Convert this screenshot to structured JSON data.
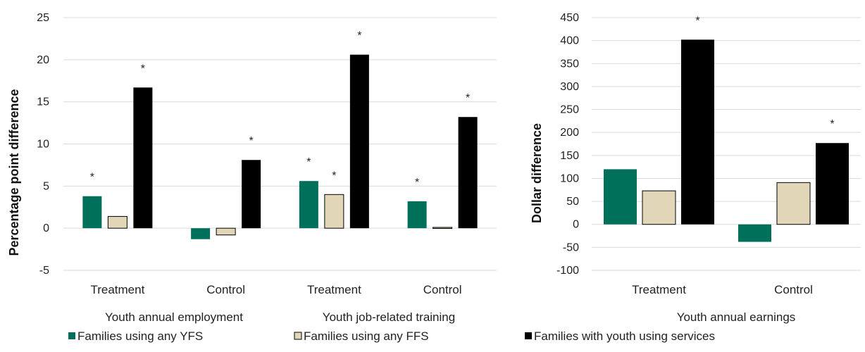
{
  "colors": {
    "yfs": "#00705A",
    "ffs": "#E2D6B8",
    "youth": "#000000",
    "grid": "#D9D9D9",
    "bar_outline": "#000000"
  },
  "legend": [
    {
      "series_index": 0,
      "label": "Families using any YFS"
    },
    {
      "series_index": 1,
      "label": "Families using any FFS"
    },
    {
      "series_index": 2,
      "label": "Families with youth using services"
    }
  ],
  "chart_data": [
    {
      "type": "bar",
      "ylabel": "Percentage point difference",
      "ylim": [
        -5,
        25
      ],
      "yticks": [
        -5,
        0,
        5,
        10,
        15,
        20,
        25
      ],
      "grid": true,
      "categories": [
        "Treatment",
        "Control",
        "Treatment",
        "Control"
      ],
      "groups": [
        "Youth annual employment",
        "Youth job-related training"
      ],
      "series": [
        {
          "values": [
            3.8,
            -1.3,
            5.6,
            3.2
          ],
          "significant": [
            true,
            false,
            true,
            true
          ]
        },
        {
          "values": [
            1.4,
            -0.8,
            4.0,
            0.1
          ],
          "significant": [
            false,
            false,
            true,
            false
          ]
        },
        {
          "values": [
            16.7,
            8.1,
            20.6,
            13.2
          ],
          "significant": [
            true,
            true,
            true,
            true
          ]
        }
      ],
      "marker": "*"
    },
    {
      "type": "bar",
      "ylabel": "Dollar difference",
      "ylim": [
        -100,
        450
      ],
      "yticks": [
        -100,
        -50,
        0,
        50,
        100,
        150,
        200,
        250,
        300,
        350,
        400,
        450
      ],
      "grid": true,
      "categories": [
        "Treatment",
        "Control"
      ],
      "groups": [
        "Youth annual earnings"
      ],
      "series": [
        {
          "values": [
            120,
            -38
          ],
          "significant": [
            false,
            false
          ]
        },
        {
          "values": [
            73,
            91
          ],
          "significant": [
            false,
            false
          ]
        },
        {
          "values": [
            402,
            177
          ],
          "significant": [
            true,
            true
          ]
        }
      ],
      "marker": "*"
    }
  ]
}
